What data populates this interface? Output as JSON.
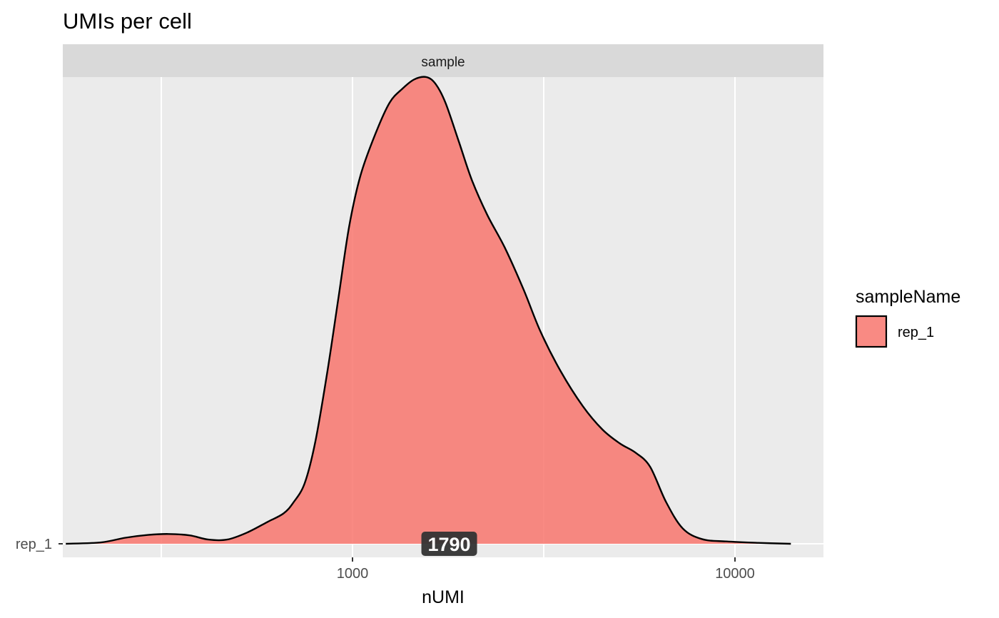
{
  "chart_data": {
    "type": "area",
    "subtype": "ridgeline-density",
    "title": "UMIs per cell",
    "xlabel": "nUMI",
    "ylabel": "",
    "x_scale": "log10",
    "xlim": [
      145,
      16000
    ],
    "x_ticks": [
      1000,
      10000
    ],
    "x_tick_labels": [
      "1000",
      "10000"
    ],
    "x_gridlines": [
      316.2,
      1000,
      3162.3,
      10000
    ],
    "y_categories": [
      "rep_1"
    ],
    "facet_label": "sample",
    "grid": true,
    "legend": {
      "title": "sampleName",
      "position": "right",
      "entries": [
        {
          "label": "rep_1",
          "color": "#F8766D"
        }
      ]
    },
    "series": [
      {
        "name": "rep_1",
        "color": "#F8766D",
        "median_label": "1790",
        "density": [
          [
            178,
            0.0
          ],
          [
            220,
            0.003
          ],
          [
            255,
            0.013
          ],
          [
            292,
            0.019
          ],
          [
            330,
            0.021
          ],
          [
            375,
            0.018
          ],
          [
            420,
            0.009
          ],
          [
            470,
            0.009
          ],
          [
            530,
            0.024
          ],
          [
            600,
            0.047
          ],
          [
            660,
            0.065
          ],
          [
            700,
            0.088
          ],
          [
            750,
            0.13
          ],
          [
            800,
            0.22
          ],
          [
            860,
            0.37
          ],
          [
            920,
            0.53
          ],
          [
            980,
            0.68
          ],
          [
            1050,
            0.79
          ],
          [
            1150,
            0.88
          ],
          [
            1250,
            0.945
          ],
          [
            1350,
            0.975
          ],
          [
            1450,
            0.995
          ],
          [
            1560,
            1.0
          ],
          [
            1650,
            0.985
          ],
          [
            1750,
            0.945
          ],
          [
            1900,
            0.86
          ],
          [
            2050,
            0.78
          ],
          [
            2250,
            0.705
          ],
          [
            2500,
            0.635
          ],
          [
            2800,
            0.545
          ],
          [
            3100,
            0.455
          ],
          [
            3500,
            0.37
          ],
          [
            4000,
            0.295
          ],
          [
            4500,
            0.245
          ],
          [
            5000,
            0.215
          ],
          [
            5500,
            0.195
          ],
          [
            6000,
            0.165
          ],
          [
            6600,
            0.09
          ],
          [
            7300,
            0.033
          ],
          [
            8200,
            0.01
          ],
          [
            9500,
            0.005
          ],
          [
            11500,
            0.002
          ],
          [
            14000,
            0.0
          ]
        ]
      }
    ]
  }
}
